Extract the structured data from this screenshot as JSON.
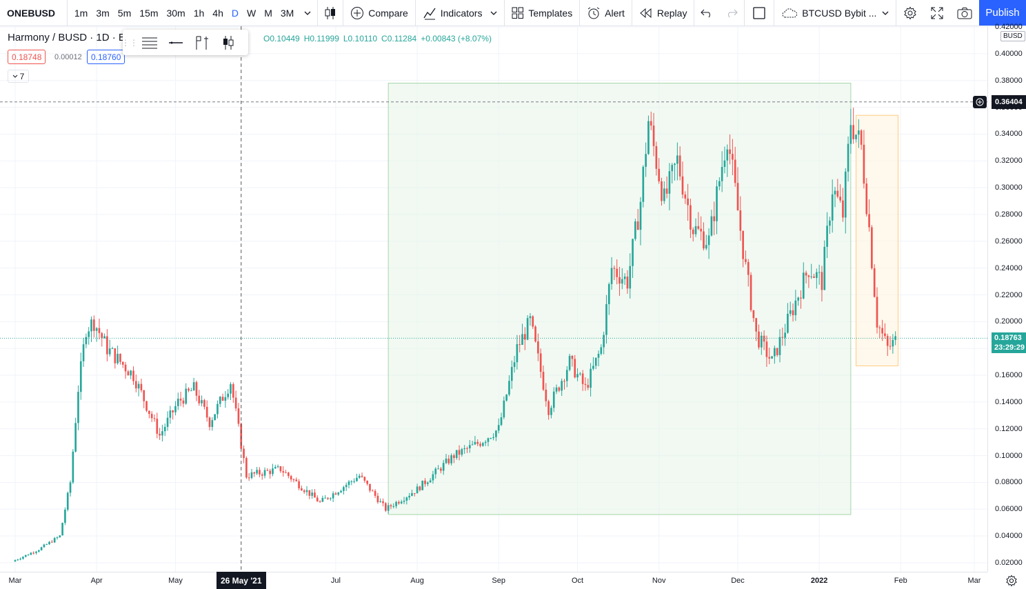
{
  "toolbar": {
    "symbol": "ONEBUSD",
    "intervals": [
      "1m",
      "3m",
      "5m",
      "15m",
      "30m",
      "1h",
      "4h",
      "D",
      "W",
      "M",
      "3M"
    ],
    "active_interval": "D",
    "compare": "Compare",
    "indicators": "Indicators",
    "templates": "Templates",
    "alert": "Alert",
    "replay": "Replay",
    "layout_name": "BTCUSD Bybit ...",
    "publish": "Publish"
  },
  "legend": {
    "title": "Harmony / BUSD · 1D · B",
    "open": "O0.10449",
    "high": "H0.11999",
    "low": "L0.10110",
    "close": "C0.11284",
    "change": "+0.00843 (+8.07%)",
    "bid": "0.18748",
    "spread": "0.00012",
    "ask": "0.18760",
    "indicators_count": "7"
  },
  "price_axis": {
    "currency": "BUSD",
    "ticks": [
      "0.42000",
      "0.40000",
      "0.38000",
      "0.36000",
      "0.34000",
      "0.32000",
      "0.30000",
      "0.28000",
      "0.26000",
      "0.24000",
      "0.22000",
      "0.20000",
      "0.18000",
      "0.16000",
      "0.14000",
      "0.12000",
      "0.10000",
      "0.08000",
      "0.06000",
      "0.04000",
      "0.02000"
    ],
    "high_line_label": "0.36404",
    "last_price": "0.18763",
    "countdown": "23:29:29"
  },
  "time_axis": {
    "ticks": [
      "Mar",
      "Apr",
      "May",
      "Jul",
      "Aug",
      "Sep",
      "Oct",
      "Nov",
      "Dec",
      "2022",
      "Feb",
      "Mar"
    ],
    "crosshair_label": "26 May '21"
  },
  "colors": {
    "up": "#26a69a",
    "down": "#ef5350",
    "accent": "#2962ff",
    "range_green": "#e8f5e9",
    "range_orange": "#fff3e0"
  },
  "chart_data": {
    "type": "candlestick",
    "symbol": "ONEBUSD",
    "xlabel": "",
    "ylabel": "",
    "ylim": [
      0.01,
      0.42
    ],
    "anchors": [
      {
        "date": "2021-03-01",
        "close": 0.022
      },
      {
        "date": "2021-03-10",
        "close": 0.03
      },
      {
        "date": "2021-03-18",
        "close": 0.04
      },
      {
        "date": "2021-03-22",
        "close": 0.08
      },
      {
        "date": "2021-03-25",
        "close": 0.15
      },
      {
        "date": "2021-03-28",
        "close": 0.195
      },
      {
        "date": "2021-03-31",
        "close": 0.2
      },
      {
        "date": "2021-04-05",
        "close": 0.18
      },
      {
        "date": "2021-04-15",
        "close": 0.16
      },
      {
        "date": "2021-04-25",
        "close": 0.115
      },
      {
        "date": "2021-05-02",
        "close": 0.14
      },
      {
        "date": "2021-05-08",
        "close": 0.15
      },
      {
        "date": "2021-05-14",
        "close": 0.125
      },
      {
        "date": "2021-05-22",
        "close": 0.155
      },
      {
        "date": "2021-05-28",
        "close": 0.085
      },
      {
        "date": "2021-06-10",
        "close": 0.09
      },
      {
        "date": "2021-06-25",
        "close": 0.065
      },
      {
        "date": "2021-07-10",
        "close": 0.085
      },
      {
        "date": "2021-07-20",
        "close": 0.06
      },
      {
        "date": "2021-08-01",
        "close": 0.075
      },
      {
        "date": "2021-08-15",
        "close": 0.1
      },
      {
        "date": "2021-08-25",
        "close": 0.11
      },
      {
        "date": "2021-09-01",
        "close": 0.12
      },
      {
        "date": "2021-09-08",
        "close": 0.18
      },
      {
        "date": "2021-09-13",
        "close": 0.2
      },
      {
        "date": "2021-09-20",
        "close": 0.135
      },
      {
        "date": "2021-09-28",
        "close": 0.17
      },
      {
        "date": "2021-10-04",
        "close": 0.15
      },
      {
        "date": "2021-10-10",
        "close": 0.18
      },
      {
        "date": "2021-10-14",
        "close": 0.24
      },
      {
        "date": "2021-10-20",
        "close": 0.23
      },
      {
        "date": "2021-10-25",
        "close": 0.29
      },
      {
        "date": "2021-10-28",
        "close": 0.35
      },
      {
        "date": "2021-11-03",
        "close": 0.29
      },
      {
        "date": "2021-11-08",
        "close": 0.32
      },
      {
        "date": "2021-11-14",
        "close": 0.27
      },
      {
        "date": "2021-11-20",
        "close": 0.26
      },
      {
        "date": "2021-11-27",
        "close": 0.34
      },
      {
        "date": "2021-12-04",
        "close": 0.24
      },
      {
        "date": "2021-12-08",
        "close": 0.19
      },
      {
        "date": "2021-12-14",
        "close": 0.17
      },
      {
        "date": "2021-12-22",
        "close": 0.21
      },
      {
        "date": "2021-12-28",
        "close": 0.24
      },
      {
        "date": "2022-01-02",
        "close": 0.23
      },
      {
        "date": "2022-01-06",
        "close": 0.3
      },
      {
        "date": "2022-01-10",
        "close": 0.28
      },
      {
        "date": "2022-01-13",
        "close": 0.35
      },
      {
        "date": "2022-01-17",
        "close": 0.33
      },
      {
        "date": "2022-01-20",
        "close": 0.27
      },
      {
        "date": "2022-01-23",
        "close": 0.2
      },
      {
        "date": "2022-01-27",
        "close": 0.18
      },
      {
        "date": "2022-01-31",
        "close": 0.1876
      }
    ],
    "high_line": 0.36404,
    "last_price": 0.18763,
    "crosshair_date": "2021-05-26",
    "ranges": [
      {
        "from": "2021-07-21",
        "to": "2022-01-13",
        "top": 0.378,
        "bottom": 0.056
      },
      {
        "from": "2022-01-15",
        "to": "2022-01-31",
        "top": 0.354,
        "bottom": 0.167
      }
    ]
  }
}
